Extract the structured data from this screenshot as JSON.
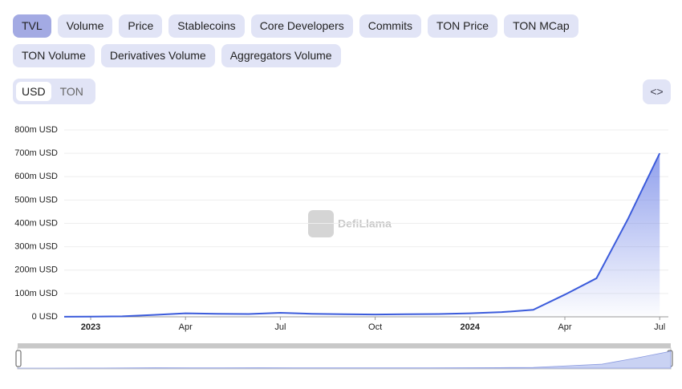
{
  "tabs": [
    "TVL",
    "Volume",
    "Price",
    "Stablecoins",
    "Core Developers",
    "Commits",
    "TON Price",
    "TON MCap",
    "TON Volume",
    "Derivatives Volume",
    "Aggregators Volume"
  ],
  "active_tab": "TVL",
  "currency_toggle": [
    "USD",
    "TON"
  ],
  "active_currency": "USD",
  "watermark": "DefiLlama",
  "chart_data": {
    "type": "line",
    "x": [
      "2022-12",
      "2023-01",
      "2023-02",
      "2023-03",
      "2023-04",
      "2023-05",
      "2023-06",
      "2023-07",
      "2023-08",
      "2023-09",
      "2023-10",
      "2023-11",
      "2023-12",
      "2024-01",
      "2024-02",
      "2024-03",
      "2024-04",
      "2024-05",
      "2024-06",
      "2024-07"
    ],
    "series": [
      {
        "color": "#3b5bdb",
        "values": [
          500000,
          1000000,
          2000000,
          8000000,
          15000000,
          13000000,
          12000000,
          17000000,
          13000000,
          11000000,
          10000000,
          11000000,
          12000000,
          15000000,
          20000000,
          30000000,
          95000000,
          165000000,
          420000000,
          700000000
        ]
      }
    ],
    "ylim": [
      0,
      800000000
    ],
    "yticks": [
      {
        "value": 0,
        "label": "0 USD"
      },
      {
        "value": 100000000,
        "label": "100m USD"
      },
      {
        "value": 200000000,
        "label": "200m USD"
      },
      {
        "value": 300000000,
        "label": "300m USD"
      },
      {
        "value": 400000000,
        "label": "400m USD"
      },
      {
        "value": 500000000,
        "label": "500m USD"
      },
      {
        "value": 600000000,
        "label": "600m USD"
      },
      {
        "value": 700000000,
        "label": "700m USD"
      },
      {
        "value": 800000000,
        "label": "800m USD"
      }
    ],
    "xticks": [
      {
        "value": "2023-01",
        "label": "2023"
      },
      {
        "value": "2023-04",
        "label": "Apr"
      },
      {
        "value": "2023-07",
        "label": "Jul"
      },
      {
        "value": "2023-10",
        "label": "Oct"
      },
      {
        "value": "2024-01",
        "label": "2024"
      },
      {
        "value": "2024-04",
        "label": "Apr"
      },
      {
        "value": "2024-07",
        "label": "Jul"
      }
    ],
    "grid": true
  }
}
